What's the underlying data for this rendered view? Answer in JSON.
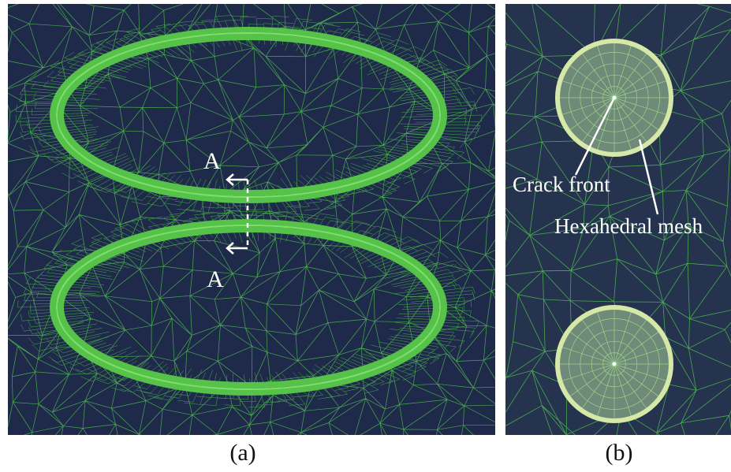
{
  "panels": {
    "a": {
      "caption": "(a)",
      "section_label_top": "A",
      "section_label_bottom": "A"
    },
    "b": {
      "caption": "(b)",
      "labels": {
        "crack_front": "Crack front",
        "hexahedral_mesh": "Hexahedral mesh"
      }
    }
  },
  "colors": {
    "background": "#1f2a4a",
    "mesh_line": "#4fbf4f",
    "crack_ring": "#56c24a",
    "hex_disk_fill": "#6f8a78",
    "hex_disk_rim": "#d6e8a8",
    "annotation": "#ffffff"
  }
}
